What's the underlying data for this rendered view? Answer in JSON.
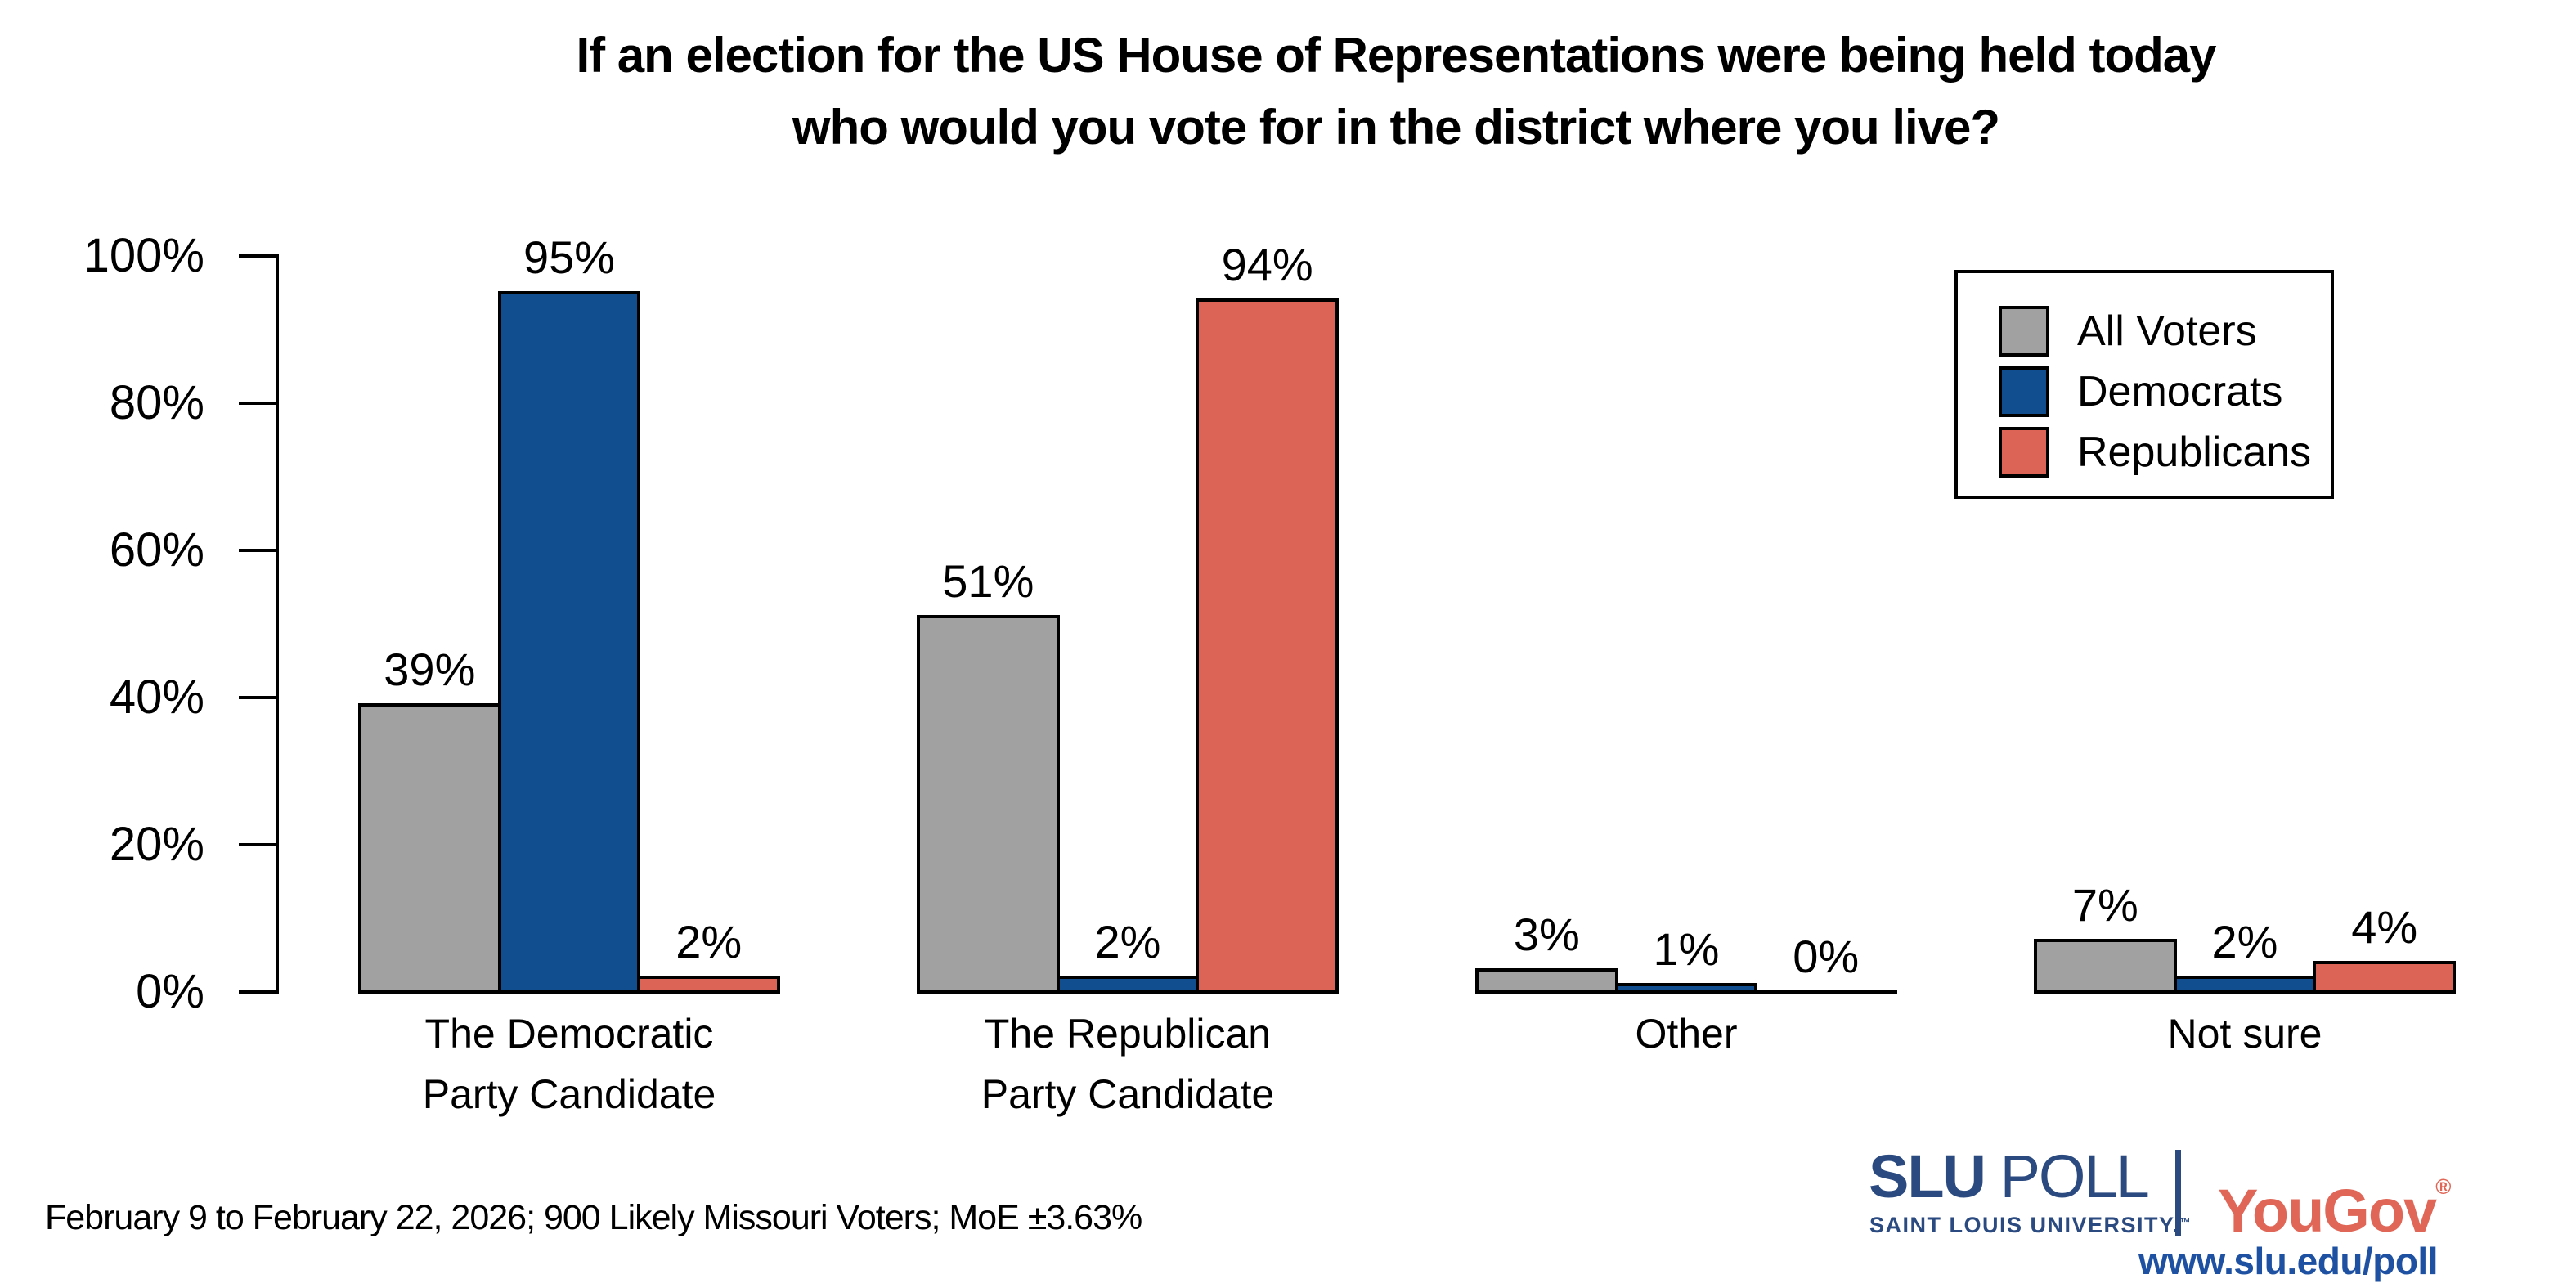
{
  "title": {
    "line1": "If an election for the US House of Representations were being held today",
    "line2": "who would you vote for in the district where you live?"
  },
  "chart_data": {
    "type": "bar",
    "categories": [
      {
        "label": "The Democratic Party Candidate",
        "lines": [
          "The Democratic",
          "Party Candidate"
        ]
      },
      {
        "label": "The Republican Party Candidate",
        "lines": [
          "The Republican",
          "Party Candidate"
        ]
      },
      {
        "label": "Other",
        "lines": [
          "Other"
        ]
      },
      {
        "label": "Not sure",
        "lines": [
          "Not sure"
        ]
      }
    ],
    "series": [
      {
        "name": "All Voters",
        "color": "#A1A1A1",
        "values": [
          39,
          51,
          3,
          7
        ]
      },
      {
        "name": "Democrats",
        "color": "#114E90",
        "values": [
          95,
          2,
          1,
          2
        ]
      },
      {
        "name": "Republicans",
        "color": "#DB6457",
        "values": [
          2,
          94,
          0,
          4
        ]
      }
    ],
    "value_label_suffix": "%",
    "ylim": [
      0,
      100
    ],
    "yticks": [
      0,
      20,
      40,
      60,
      80,
      100
    ],
    "ytick_suffix": "%",
    "grid": false,
    "legend_position": "top-right",
    "bar_edge_color": "#000000"
  },
  "footer": {
    "note": "February 9 to February 22, 2026; 900 Likely Missouri Voters; MoE ±3.63%"
  },
  "branding": {
    "slu": "SLU",
    "poll": "POLL",
    "slu_sub": "SAINT LOUIS UNIVERSITY.",
    "trademark": "™",
    "yougov": "YouGov",
    "registered": "®",
    "url": "www.slu.edu/poll",
    "slu_blue": "#2A4A80",
    "yougov_red": "#E06757",
    "url_blue": "#1E51A2"
  }
}
